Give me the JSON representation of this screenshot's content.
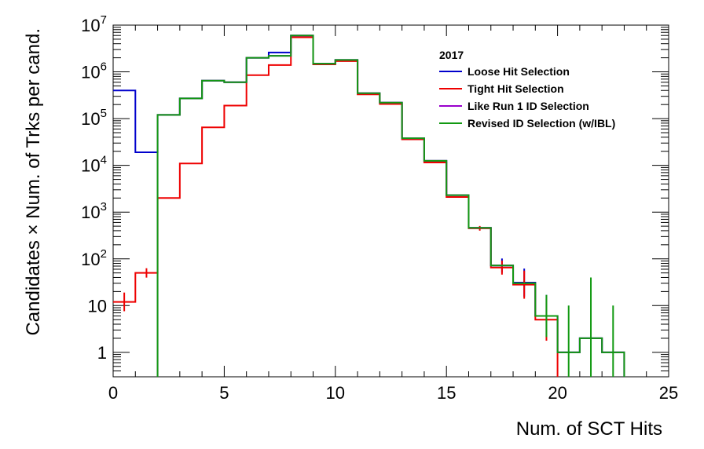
{
  "chart_data": {
    "type": "line",
    "subtype": "step-histogram",
    "xlabel": "Num. of SCT Hits",
    "ylabel": "Candidates × Num. of Trks per cand.",
    "xlim": [
      0,
      25
    ],
    "ylim": [
      0.3,
      10000000
    ],
    "yscale": "log",
    "grid": false,
    "legend_header": "2017",
    "legend_position": "top-right",
    "x_ticks": [
      {
        "value": 0,
        "label": "0"
      },
      {
        "value": 5,
        "label": "5"
      },
      {
        "value": 10,
        "label": "10"
      },
      {
        "value": 15,
        "label": "15"
      },
      {
        "value": 20,
        "label": "20"
      },
      {
        "value": 25,
        "label": "25"
      }
    ],
    "y_ticks": [
      {
        "value": 1,
        "base": "1",
        "exp": ""
      },
      {
        "value": 10,
        "base": "10",
        "exp": ""
      },
      {
        "value": 100,
        "base": "10",
        "exp": "2"
      },
      {
        "value": 1000,
        "base": "10",
        "exp": "3"
      },
      {
        "value": 10000,
        "base": "10",
        "exp": "4"
      },
      {
        "value": 100000,
        "base": "10",
        "exp": "5"
      },
      {
        "value": 1000000,
        "base": "10",
        "exp": "6"
      },
      {
        "value": 10000000,
        "base": "10",
        "exp": "7"
      }
    ],
    "bin_edges": [
      0,
      1,
      2,
      3,
      4,
      5,
      6,
      7,
      8,
      9,
      10,
      11,
      12,
      13,
      14,
      15,
      16,
      17,
      18,
      19,
      20,
      21,
      22,
      23,
      24,
      25
    ],
    "series": [
      {
        "name": "Loose Hit Selection",
        "color": "#0000cc",
        "values": [
          400000,
          19000,
          120000,
          270000,
          650000,
          600000,
          2000000,
          2600000,
          6000000,
          1500000,
          1800000,
          350000,
          220000,
          38000,
          12500,
          2300,
          460,
          72,
          31,
          6,
          1,
          2,
          1,
          0,
          0
        ],
        "errors": [
          0,
          0,
          0,
          0,
          0,
          0,
          0,
          0,
          0,
          0,
          0,
          0,
          0,
          0,
          0,
          0,
          0,
          0.15,
          0.3,
          0.45,
          0,
          0,
          0,
          0,
          0
        ]
      },
      {
        "name": "Tight Hit Selection",
        "color": "#ee0000",
        "values": [
          12,
          50,
          2000,
          11000,
          65000,
          190000,
          850000,
          1400000,
          5500000,
          1450000,
          1700000,
          330000,
          205000,
          36000,
          11500,
          2100,
          450,
          65,
          28,
          5,
          0,
          0,
          0,
          0,
          0
        ],
        "errors": [
          0.2,
          0.1,
          0,
          0,
          0,
          0,
          0,
          0,
          0,
          0,
          0,
          0,
          0,
          0,
          0,
          0,
          0.05,
          0.15,
          0.3,
          0.45,
          0,
          0,
          0,
          0,
          0
        ]
      },
      {
        "name": "Like Run 1 ID Selection",
        "color": "#9900cc",
        "values": [
          0,
          0,
          120000,
          270000,
          650000,
          600000,
          2000000,
          2200000,
          6000000,
          1500000,
          1800000,
          350000,
          220000,
          38000,
          12500,
          2300,
          460,
          72,
          30,
          6,
          1,
          2,
          1,
          0,
          0
        ],
        "errors": [
          0,
          0,
          0,
          0,
          0,
          0,
          0,
          0,
          0,
          0,
          0,
          0,
          0,
          0,
          0,
          0,
          0,
          0,
          0,
          0,
          0,
          0,
          0,
          0,
          0
        ]
      },
      {
        "name": "Revised ID Selection (w/IBL)",
        "color": "#119911",
        "values": [
          0,
          0,
          120000,
          270000,
          650000,
          600000,
          2000000,
          2200000,
          6000000,
          1500000,
          1800000,
          350000,
          220000,
          38000,
          12500,
          2300,
          460,
          72,
          30,
          6,
          1,
          2,
          1,
          0,
          0
        ],
        "errors": [
          0,
          0,
          0,
          0,
          0,
          0,
          0,
          0,
          0,
          0,
          0,
          0,
          0,
          0,
          0,
          0,
          0,
          0,
          0,
          0.45,
          1.0,
          1.3,
          1.0,
          0,
          0
        ]
      }
    ]
  }
}
